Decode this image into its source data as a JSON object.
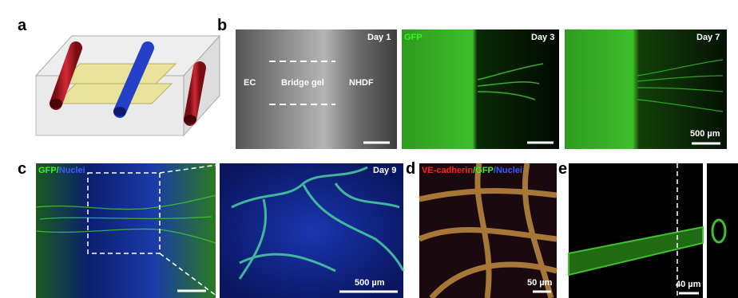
{
  "panels": {
    "a": {
      "label": "a"
    },
    "b": {
      "label": "b",
      "day1": "Day 1",
      "ec": "EC",
      "gel": "Bridge gel",
      "nhdf": "NHDF",
      "gfp": "GFP",
      "day3": "Day 3",
      "day7": "Day 7",
      "scale": "500 µm"
    },
    "c": {
      "label": "c",
      "stain": [
        "GFP",
        "/",
        "Nuclei"
      ],
      "day9": "Day 9",
      "scale": "500 µm"
    },
    "d": {
      "label": "d",
      "stain": [
        "VE-cadherin",
        "/",
        "GFP",
        "/",
        "Nuclei"
      ],
      "scale": "50 µm"
    },
    "e": {
      "label": "e",
      "scale": "40 µm"
    }
  }
}
